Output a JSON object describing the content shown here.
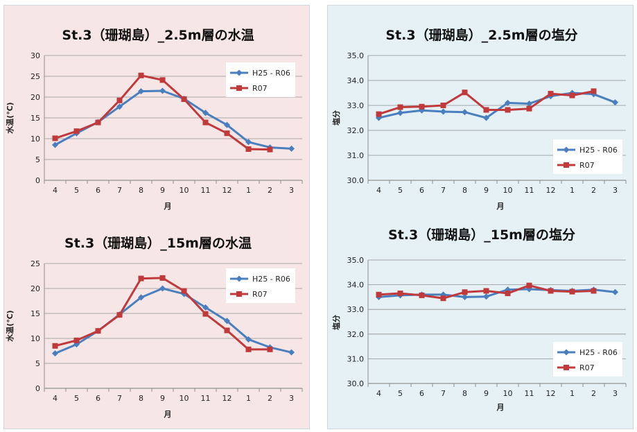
{
  "colors": {
    "series_h25": "#4a7fbf",
    "series_r07": "#c0393b",
    "grid": "#8f8f8f",
    "temp_panel_bg": "#f6e6e5",
    "sal_panel_bg": "#e5f1f5"
  },
  "chart_data": [
    {
      "type": "line",
      "title": "St.3（珊瑚島）_2.5m層の水温",
      "xlabel": "月",
      "ylabel": "水温(℃)",
      "categories": [
        "4",
        "5",
        "6",
        "7",
        "8",
        "9",
        "10",
        "11",
        "12",
        "1",
        "2",
        "3"
      ],
      "yticks": [
        "0",
        "5",
        "10",
        "15",
        "20",
        "25",
        "30"
      ],
      "ylim": [
        0,
        30
      ],
      "legend": "top-right",
      "series": [
        {
          "name": "H25 - R06",
          "values": [
            8.5,
            11.3,
            14.0,
            17.7,
            21.4,
            21.5,
            19.6,
            16.2,
            13.3,
            9.2,
            7.9,
            7.6
          ]
        },
        {
          "name": "R07",
          "values": [
            10.1,
            11.8,
            13.9,
            19.2,
            25.2,
            24.1,
            19.5,
            13.9,
            11.3,
            7.5,
            7.4,
            null
          ]
        }
      ]
    },
    {
      "type": "line",
      "title": "St.3（珊瑚島）_2.5m層の塩分",
      "xlabel": "月",
      "ylabel": "塩分",
      "categories": [
        "4",
        "5",
        "6",
        "7",
        "8",
        "9",
        "10",
        "11",
        "12",
        "1",
        "2",
        "3"
      ],
      "yticks": [
        "30.0",
        "31.0",
        "32.0",
        "33.0",
        "34.0",
        "35.0"
      ],
      "ylim": [
        30,
        35
      ],
      "legend": "middle-right",
      "series": [
        {
          "name": "H25 - R06",
          "values": [
            32.5,
            32.7,
            32.8,
            32.75,
            32.73,
            32.5,
            33.1,
            33.07,
            33.37,
            33.5,
            33.45,
            33.12
          ]
        },
        {
          "name": "R07",
          "values": [
            32.65,
            32.93,
            32.95,
            33.0,
            33.52,
            32.82,
            32.82,
            32.87,
            33.47,
            33.4,
            33.57,
            null
          ]
        }
      ]
    },
    {
      "type": "line",
      "title": "St.3（珊瑚島）_15m層の水温",
      "xlabel": "月",
      "ylabel": "水温(℃)",
      "categories": [
        "4",
        "5",
        "6",
        "7",
        "8",
        "9",
        "10",
        "11",
        "12",
        "1",
        "2",
        "3"
      ],
      "yticks": [
        "0",
        "5",
        "10",
        "15",
        "20",
        "25"
      ],
      "ylim": [
        0,
        25
      ],
      "legend": "top-right",
      "series": [
        {
          "name": "H25 - R06",
          "values": [
            7.0,
            8.8,
            11.5,
            14.8,
            18.2,
            20.0,
            18.9,
            16.2,
            13.5,
            9.8,
            8.2,
            7.2
          ]
        },
        {
          "name": "R07",
          "values": [
            8.5,
            9.6,
            11.5,
            14.7,
            22.0,
            22.1,
            19.5,
            14.9,
            11.6,
            7.8,
            7.8,
            null
          ]
        }
      ]
    },
    {
      "type": "line",
      "title": "St.3（珊瑚島）_15m層の塩分",
      "xlabel": "月",
      "ylabel": "塩分",
      "categories": [
        "4",
        "5",
        "6",
        "7",
        "8",
        "9",
        "10",
        "11",
        "12",
        "1",
        "2",
        "3"
      ],
      "yticks": [
        "30.0",
        "31.0",
        "32.0",
        "33.0",
        "34.0",
        "35.0"
      ],
      "ylim": [
        30,
        35
      ],
      "legend": "bottom-right",
      "series": [
        {
          "name": "H25 - R06",
          "values": [
            33.5,
            33.57,
            33.6,
            33.6,
            33.5,
            33.52,
            33.8,
            33.82,
            33.78,
            33.75,
            33.8,
            33.7
          ]
        },
        {
          "name": "R07",
          "values": [
            33.6,
            33.65,
            33.57,
            33.45,
            33.7,
            33.75,
            33.65,
            33.97,
            33.75,
            33.72,
            33.75,
            null
          ]
        }
      ]
    }
  ]
}
